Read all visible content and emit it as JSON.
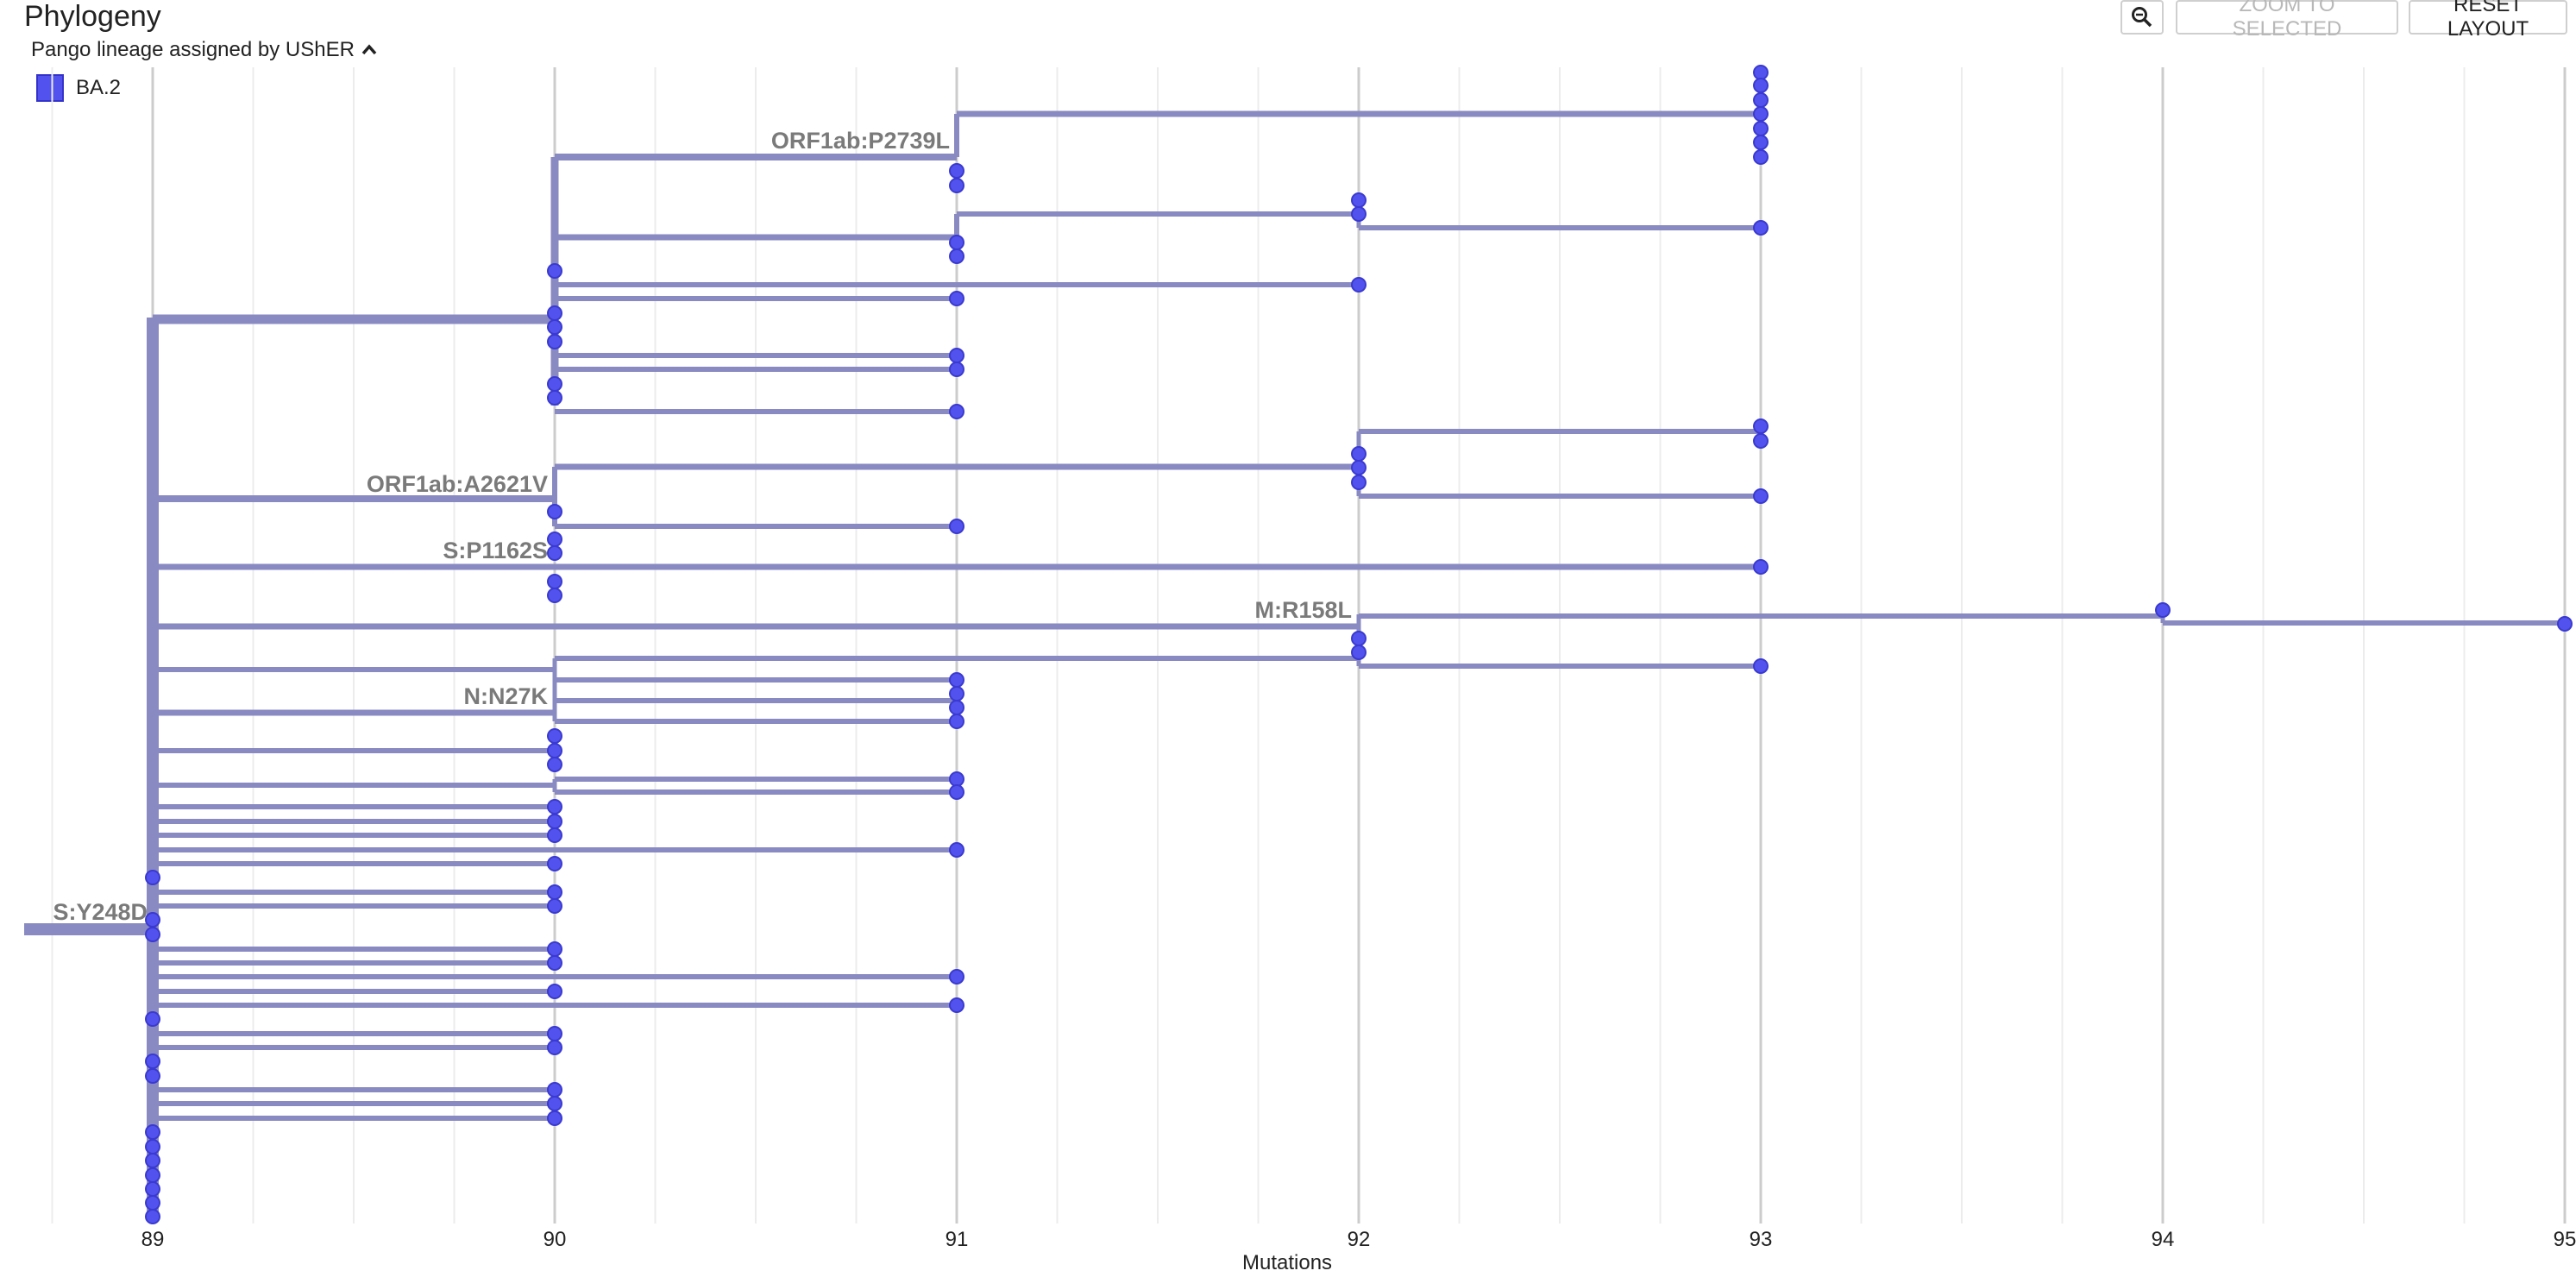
{
  "header": {
    "title": "Phylogeny",
    "color_by": "Pango lineage assigned by UShER",
    "zoom_icon": "zoom-out-icon",
    "zoom_selected_label": "ZOOM TO SELECTED",
    "reset_layout_label": "RESET LAYOUT"
  },
  "legend": [
    {
      "label": "BA.2",
      "color": "#5252ee"
    }
  ],
  "colors": {
    "branch": "#8a8ac2",
    "node": "#5252ee",
    "node_stroke": "#3a3ad0",
    "label": "#7a7a7a",
    "grid_major": "#cccccc",
    "grid_minor": "#ececec"
  },
  "chart_data": {
    "type": "tree",
    "xlabel": "Mutations",
    "xlim": [
      88.75,
      95
    ],
    "x_ticks": [
      89,
      90,
      91,
      92,
      93,
      94,
      95
    ],
    "grid": true,
    "root_label": "S:Y248D",
    "mutation_labels": [
      {
        "text": "ORF1ab:P2739L",
        "at": 90
      },
      {
        "text": "ORF1ab:A2621V",
        "at": 89
      },
      {
        "text": "S:P1162S",
        "at": 89
      },
      {
        "text": "M:R158L",
        "at": 91
      },
      {
        "text": "N:N27K",
        "at": 89
      }
    ]
  }
}
